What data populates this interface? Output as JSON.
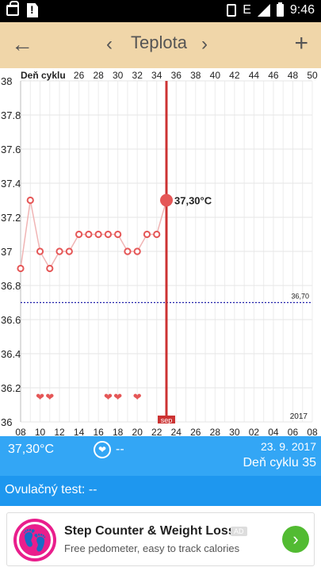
{
  "status_bar": {
    "time": "9:46",
    "network": "E"
  },
  "toolbar": {
    "title": "Teplota",
    "back_icon": "←",
    "prev_icon": "‹",
    "next_icon": "›",
    "add_icon": "+"
  },
  "chart_data": {
    "type": "line",
    "top_axis_label": "Deň cyklu",
    "top_ticks": [
      "26",
      "28",
      "30",
      "32",
      "34",
      "36",
      "38",
      "40",
      "42",
      "44",
      "46",
      "48",
      "50"
    ],
    "bottom_ticks": [
      "08",
      "10",
      "12",
      "14",
      "16",
      "18",
      "20",
      "22",
      "24",
      "26",
      "28",
      "30",
      "02",
      "04",
      "06",
      "08"
    ],
    "y_ticks": [
      "38",
      "37.8",
      "37.6",
      "37.4",
      "37.2",
      "37",
      "36.8",
      "36.6",
      "36.4",
      "36.2",
      "36"
    ],
    "ylim": [
      36,
      38
    ],
    "x_day_index_range": [
      0,
      30
    ],
    "series": [
      {
        "x": [
          0,
          1,
          2,
          3,
          4,
          5,
          6,
          7,
          8,
          9,
          10,
          11,
          12,
          13,
          14,
          15
        ],
        "y": [
          36.9,
          37.3,
          37.0,
          36.9,
          37.0,
          37.0,
          37.1,
          37.1,
          37.1,
          37.1,
          37.1,
          37.0,
          37.0,
          37.1,
          37.1,
          37.3
        ]
      }
    ],
    "cover_line": {
      "value": 36.7,
      "label": "36,70"
    },
    "selected": {
      "x": 15,
      "y": 37.3,
      "label": "37,30°C",
      "axis_marker": "sep"
    },
    "hearts_at": [
      2,
      3,
      9,
      10,
      12
    ],
    "year_label": "2017",
    "grid": true,
    "colors": {
      "series": "#e55757",
      "cover_line": "#2020aa",
      "marker": "#cc3333"
    }
  },
  "info": {
    "temperature": "37,30°C",
    "heart_value": "--",
    "date": "23. 9. 2017",
    "cycle_day": "Deň cyklu 35"
  },
  "ovulation": {
    "text": "Ovulačný test: --"
  },
  "ad": {
    "title": "Step Counter & Weight Loss",
    "tag": "AD",
    "description": "Free pedometer, easy to track calories",
    "go_icon": "›"
  }
}
